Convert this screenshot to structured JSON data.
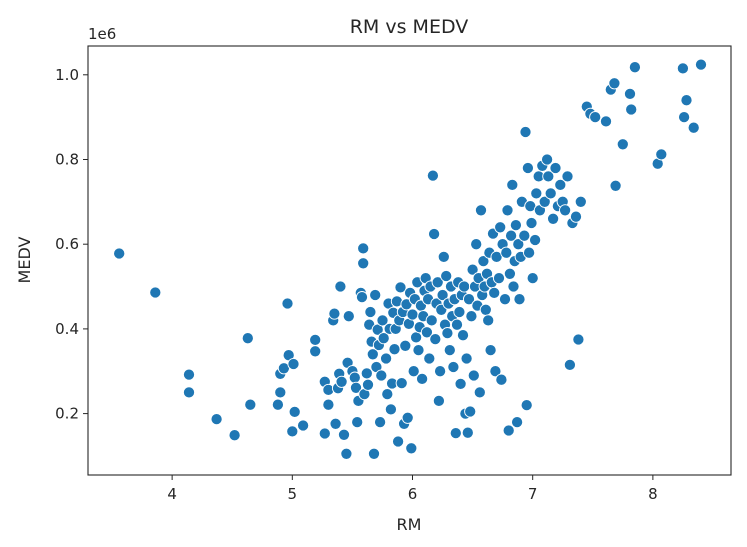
{
  "chart_data": {
    "type": "scatter",
    "title": "RM vs MEDV",
    "xlabel": "RM",
    "ylabel": "MEDV",
    "y_offset_label": "1e6",
    "xlim": [
      3.3,
      8.65
    ],
    "ylim": [
      0.055,
      1.068
    ],
    "x_ticks": [
      4,
      5,
      6,
      7,
      8
    ],
    "x_tick_labels": [
      "4",
      "5",
      "6",
      "7",
      "8"
    ],
    "y_ticks": [
      0.2,
      0.4,
      0.6,
      0.8,
      1.0
    ],
    "y_tick_labels": [
      "0.2",
      "0.4",
      "0.6",
      "0.8",
      "1.0"
    ],
    "grid": false,
    "marker_color": "#1f77b4",
    "points": [
      [
        3.56,
        0.578
      ],
      [
        3.86,
        0.486
      ],
      [
        4.14,
        0.292
      ],
      [
        4.14,
        0.25
      ],
      [
        4.37,
        0.187
      ],
      [
        4.52,
        0.149
      ],
      [
        4.63,
        0.378
      ],
      [
        4.65,
        0.221
      ],
      [
        4.88,
        0.221
      ],
      [
        4.9,
        0.294
      ],
      [
        4.9,
        0.25
      ],
      [
        4.93,
        0.307
      ],
      [
        4.96,
        0.46
      ],
      [
        4.97,
        0.338
      ],
      [
        5.0,
        0.158
      ],
      [
        5.01,
        0.317
      ],
      [
        5.02,
        0.204
      ],
      [
        5.09,
        0.172
      ],
      [
        5.19,
        0.374
      ],
      [
        5.19,
        0.347
      ],
      [
        5.27,
        0.275
      ],
      [
        5.27,
        0.153
      ],
      [
        5.3,
        0.221
      ],
      [
        5.3,
        0.256
      ],
      [
        5.34,
        0.42
      ],
      [
        5.35,
        0.436
      ],
      [
        5.36,
        0.176
      ],
      [
        5.38,
        0.26
      ],
      [
        5.39,
        0.294
      ],
      [
        5.4,
        0.5
      ],
      [
        5.41,
        0.275
      ],
      [
        5.43,
        0.15
      ],
      [
        5.45,
        0.105
      ],
      [
        5.46,
        0.32
      ],
      [
        5.47,
        0.43
      ],
      [
        5.5,
        0.3
      ],
      [
        5.52,
        0.285
      ],
      [
        5.53,
        0.261
      ],
      [
        5.54,
        0.18
      ],
      [
        5.55,
        0.23
      ],
      [
        5.57,
        0.485
      ],
      [
        5.58,
        0.475
      ],
      [
        5.59,
        0.59
      ],
      [
        5.59,
        0.555
      ],
      [
        5.6,
        0.246
      ],
      [
        5.62,
        0.295
      ],
      [
        5.63,
        0.268
      ],
      [
        5.64,
        0.41
      ],
      [
        5.65,
        0.44
      ],
      [
        5.66,
        0.37
      ],
      [
        5.67,
        0.34
      ],
      [
        5.68,
        0.105
      ],
      [
        5.69,
        0.48
      ],
      [
        5.7,
        0.31
      ],
      [
        5.71,
        0.398
      ],
      [
        5.72,
        0.362
      ],
      [
        5.73,
        0.18
      ],
      [
        5.74,
        0.29
      ],
      [
        5.75,
        0.42
      ],
      [
        5.76,
        0.378
      ],
      [
        5.78,
        0.33
      ],
      [
        5.79,
        0.246
      ],
      [
        5.8,
        0.46
      ],
      [
        5.81,
        0.4
      ],
      [
        5.82,
        0.21
      ],
      [
        5.83,
        0.271
      ],
      [
        5.84,
        0.438
      ],
      [
        5.85,
        0.352
      ],
      [
        5.86,
        0.4
      ],
      [
        5.87,
        0.465
      ],
      [
        5.88,
        0.134
      ],
      [
        5.89,
        0.42
      ],
      [
        5.9,
        0.498
      ],
      [
        5.91,
        0.272
      ],
      [
        5.92,
        0.44
      ],
      [
        5.93,
        0.176
      ],
      [
        5.94,
        0.36
      ],
      [
        5.95,
        0.458
      ],
      [
        5.96,
        0.19
      ],
      [
        5.97,
        0.412
      ],
      [
        5.98,
        0.485
      ],
      [
        5.99,
        0.118
      ],
      [
        6.0,
        0.434
      ],
      [
        6.01,
        0.3
      ],
      [
        6.02,
        0.47
      ],
      [
        6.03,
        0.38
      ],
      [
        6.04,
        0.51
      ],
      [
        6.05,
        0.35
      ],
      [
        6.06,
        0.404
      ],
      [
        6.07,
        0.455
      ],
      [
        6.08,
        0.282
      ],
      [
        6.09,
        0.43
      ],
      [
        6.1,
        0.49
      ],
      [
        6.11,
        0.52
      ],
      [
        6.12,
        0.392
      ],
      [
        6.13,
        0.47
      ],
      [
        6.14,
        0.33
      ],
      [
        6.15,
        0.5
      ],
      [
        6.16,
        0.42
      ],
      [
        6.17,
        0.762
      ],
      [
        6.18,
        0.624
      ],
      [
        6.19,
        0.376
      ],
      [
        6.2,
        0.46
      ],
      [
        6.21,
        0.51
      ],
      [
        6.22,
        0.23
      ],
      [
        6.23,
        0.3
      ],
      [
        6.24,
        0.445
      ],
      [
        6.25,
        0.48
      ],
      [
        6.26,
        0.57
      ],
      [
        6.27,
        0.41
      ],
      [
        6.28,
        0.525
      ],
      [
        6.29,
        0.39
      ],
      [
        6.3,
        0.46
      ],
      [
        6.31,
        0.35
      ],
      [
        6.32,
        0.5
      ],
      [
        6.33,
        0.43
      ],
      [
        6.34,
        0.31
      ],
      [
        6.35,
        0.47
      ],
      [
        6.36,
        0.154
      ],
      [
        6.37,
        0.41
      ],
      [
        6.38,
        0.51
      ],
      [
        6.39,
        0.44
      ],
      [
        6.4,
        0.27
      ],
      [
        6.41,
        0.48
      ],
      [
        6.42,
        0.385
      ],
      [
        6.43,
        0.5
      ],
      [
        6.44,
        0.2
      ],
      [
        6.45,
        0.33
      ],
      [
        6.46,
        0.155
      ],
      [
        6.47,
        0.47
      ],
      [
        6.48,
        0.205
      ],
      [
        6.49,
        0.43
      ],
      [
        6.5,
        0.54
      ],
      [
        6.51,
        0.29
      ],
      [
        6.52,
        0.5
      ],
      [
        6.53,
        0.6
      ],
      [
        6.54,
        0.455
      ],
      [
        6.55,
        0.52
      ],
      [
        6.56,
        0.25
      ],
      [
        6.57,
        0.68
      ],
      [
        6.58,
        0.48
      ],
      [
        6.59,
        0.56
      ],
      [
        6.6,
        0.5
      ],
      [
        6.61,
        0.445
      ],
      [
        6.62,
        0.53
      ],
      [
        6.63,
        0.42
      ],
      [
        6.64,
        0.58
      ],
      [
        6.65,
        0.35
      ],
      [
        6.66,
        0.51
      ],
      [
        6.67,
        0.625
      ],
      [
        6.68,
        0.485
      ],
      [
        6.69,
        0.3
      ],
      [
        6.7,
        0.57
      ],
      [
        6.72,
        0.52
      ],
      [
        6.73,
        0.64
      ],
      [
        6.74,
        0.28
      ],
      [
        6.75,
        0.6
      ],
      [
        6.77,
        0.47
      ],
      [
        6.78,
        0.58
      ],
      [
        6.79,
        0.68
      ],
      [
        6.8,
        0.16
      ],
      [
        6.81,
        0.53
      ],
      [
        6.82,
        0.62
      ],
      [
        6.83,
        0.74
      ],
      [
        6.84,
        0.5
      ],
      [
        6.85,
        0.56
      ],
      [
        6.86,
        0.645
      ],
      [
        6.87,
        0.18
      ],
      [
        6.88,
        0.6
      ],
      [
        6.89,
        0.47
      ],
      [
        6.9,
        0.57
      ],
      [
        6.91,
        0.7
      ],
      [
        6.93,
        0.62
      ],
      [
        6.94,
        0.865
      ],
      [
        6.95,
        0.22
      ],
      [
        6.96,
        0.78
      ],
      [
        6.97,
        0.58
      ],
      [
        6.98,
        0.69
      ],
      [
        6.99,
        0.65
      ],
      [
        7.0,
        0.52
      ],
      [
        7.02,
        0.61
      ],
      [
        7.03,
        0.72
      ],
      [
        7.05,
        0.76
      ],
      [
        7.06,
        0.68
      ],
      [
        7.08,
        0.785
      ],
      [
        7.1,
        0.7
      ],
      [
        7.12,
        0.8
      ],
      [
        7.13,
        0.76
      ],
      [
        7.15,
        0.72
      ],
      [
        7.17,
        0.66
      ],
      [
        7.19,
        0.78
      ],
      [
        7.21,
        0.69
      ],
      [
        7.23,
        0.74
      ],
      [
        7.25,
        0.7
      ],
      [
        7.27,
        0.68
      ],
      [
        7.29,
        0.76
      ],
      [
        7.31,
        0.315
      ],
      [
        7.33,
        0.65
      ],
      [
        7.36,
        0.665
      ],
      [
        7.38,
        0.375
      ],
      [
        7.4,
        0.7
      ],
      [
        7.45,
        0.925
      ],
      [
        7.48,
        0.908
      ],
      [
        7.52,
        0.9
      ],
      [
        7.61,
        0.89
      ],
      [
        7.65,
        0.965
      ],
      [
        7.68,
        0.98
      ],
      [
        7.69,
        0.738
      ],
      [
        7.75,
        0.836
      ],
      [
        7.81,
        0.955
      ],
      [
        7.82,
        0.918
      ],
      [
        7.85,
        1.018
      ],
      [
        8.04,
        0.79
      ],
      [
        8.07,
        0.812
      ],
      [
        8.25,
        1.015
      ],
      [
        8.26,
        0.9
      ],
      [
        8.28,
        0.94
      ],
      [
        8.34,
        0.875
      ],
      [
        8.4,
        1.024
      ]
    ]
  }
}
